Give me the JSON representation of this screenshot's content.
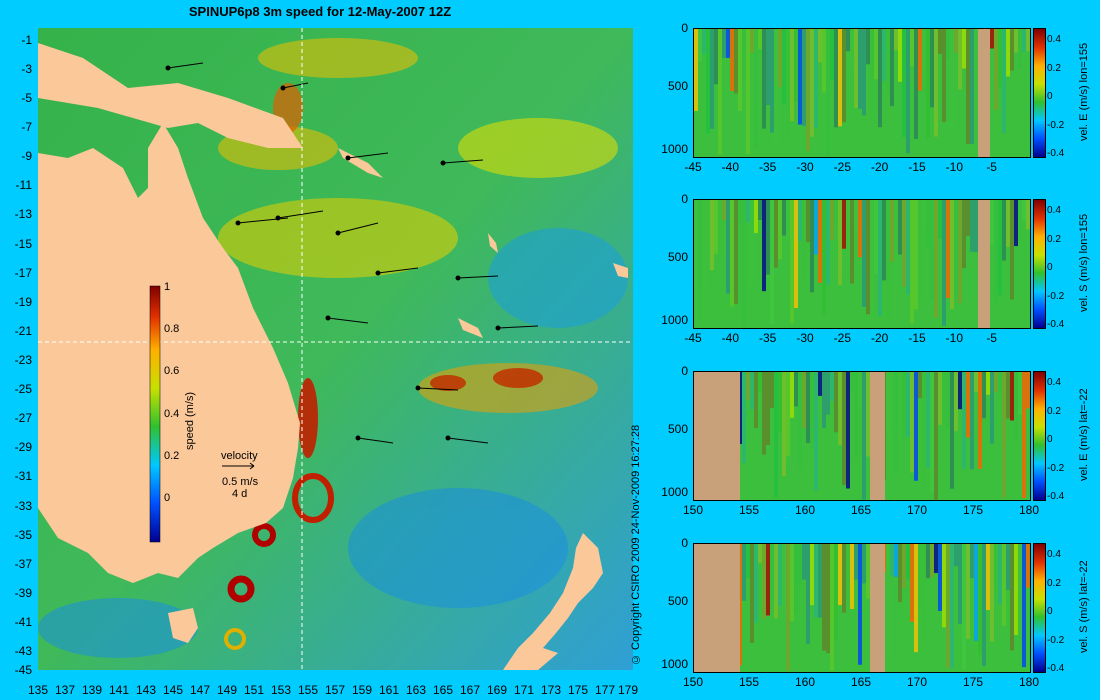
{
  "title": "SPINUP6p8 3m speed for 12-May-2007 12Z",
  "map": {
    "lat_labels": [
      "-1",
      "-3",
      "-5",
      "-7",
      "-9",
      "-11",
      "-13",
      "-15",
      "-17",
      "-19",
      "-21",
      "-23",
      "-25",
      "-27",
      "-29",
      "-31",
      "-33",
      "-35",
      "-37",
      "-39",
      "-41",
      "-43",
      "-45"
    ],
    "lon_labels": [
      "135",
      "137",
      "139",
      "141",
      "143",
      "145",
      "147",
      "149",
      "151",
      "153",
      "155",
      "157",
      "159",
      "161",
      "163",
      "165",
      "167",
      "169",
      "171",
      "173",
      "175",
      "177",
      "179"
    ],
    "section_lon": 155,
    "section_lat": -22,
    "colorbar": {
      "label": "speed (m/s)",
      "ticks": [
        "1",
        "0.8",
        "0.6",
        "0.4",
        "0.2",
        "0"
      ]
    },
    "velocity_key": {
      "title": "velocity",
      "speed": "0.5 m/s",
      "duration": "4 d"
    },
    "colors": {
      "land": "#fbc89a",
      "background": "#00ccff"
    }
  },
  "copyright": "© Copyright CSIRO 2009   24-Nov-2009 16:27:28",
  "panels": [
    {
      "label": "vel. E (m/s) lon=155",
      "x_ticks": [
        "-45",
        "-40",
        "-35",
        "-30",
        "-25",
        "-20",
        "-15",
        "-10",
        "-5"
      ],
      "y_ticks": [
        "0",
        "500",
        "1000"
      ],
      "cbar_ticks": [
        "0.4",
        "0.2",
        "0",
        "-0.2",
        "-0.4"
      ]
    },
    {
      "label": "vel. S (m/s) lon=155",
      "x_ticks": [
        "-45",
        "-40",
        "-35",
        "-30",
        "-25",
        "-20",
        "-15",
        "-10",
        "-5"
      ],
      "y_ticks": [
        "0",
        "500",
        "1000"
      ],
      "cbar_ticks": [
        "0.4",
        "0.2",
        "0",
        "-0.2",
        "-0.4"
      ]
    },
    {
      "label": "vel. E (m/s) lat=-22",
      "x_ticks": [
        "150",
        "155",
        "160",
        "165",
        "170",
        "175",
        "180"
      ],
      "y_ticks": [
        "0",
        "500",
        "1000"
      ],
      "cbar_ticks": [
        "0.4",
        "0.2",
        "0",
        "-0.2",
        "-0.4"
      ]
    },
    {
      "label": "vel. S (m/s) lat=-22",
      "x_ticks": [
        "150",
        "155",
        "160",
        "165",
        "170",
        "175",
        "180"
      ],
      "y_ticks": [
        "0",
        "500",
        "1000"
      ],
      "cbar_ticks": [
        "0.4",
        "0.2",
        "0",
        "-0.2",
        "-0.4"
      ]
    }
  ]
}
